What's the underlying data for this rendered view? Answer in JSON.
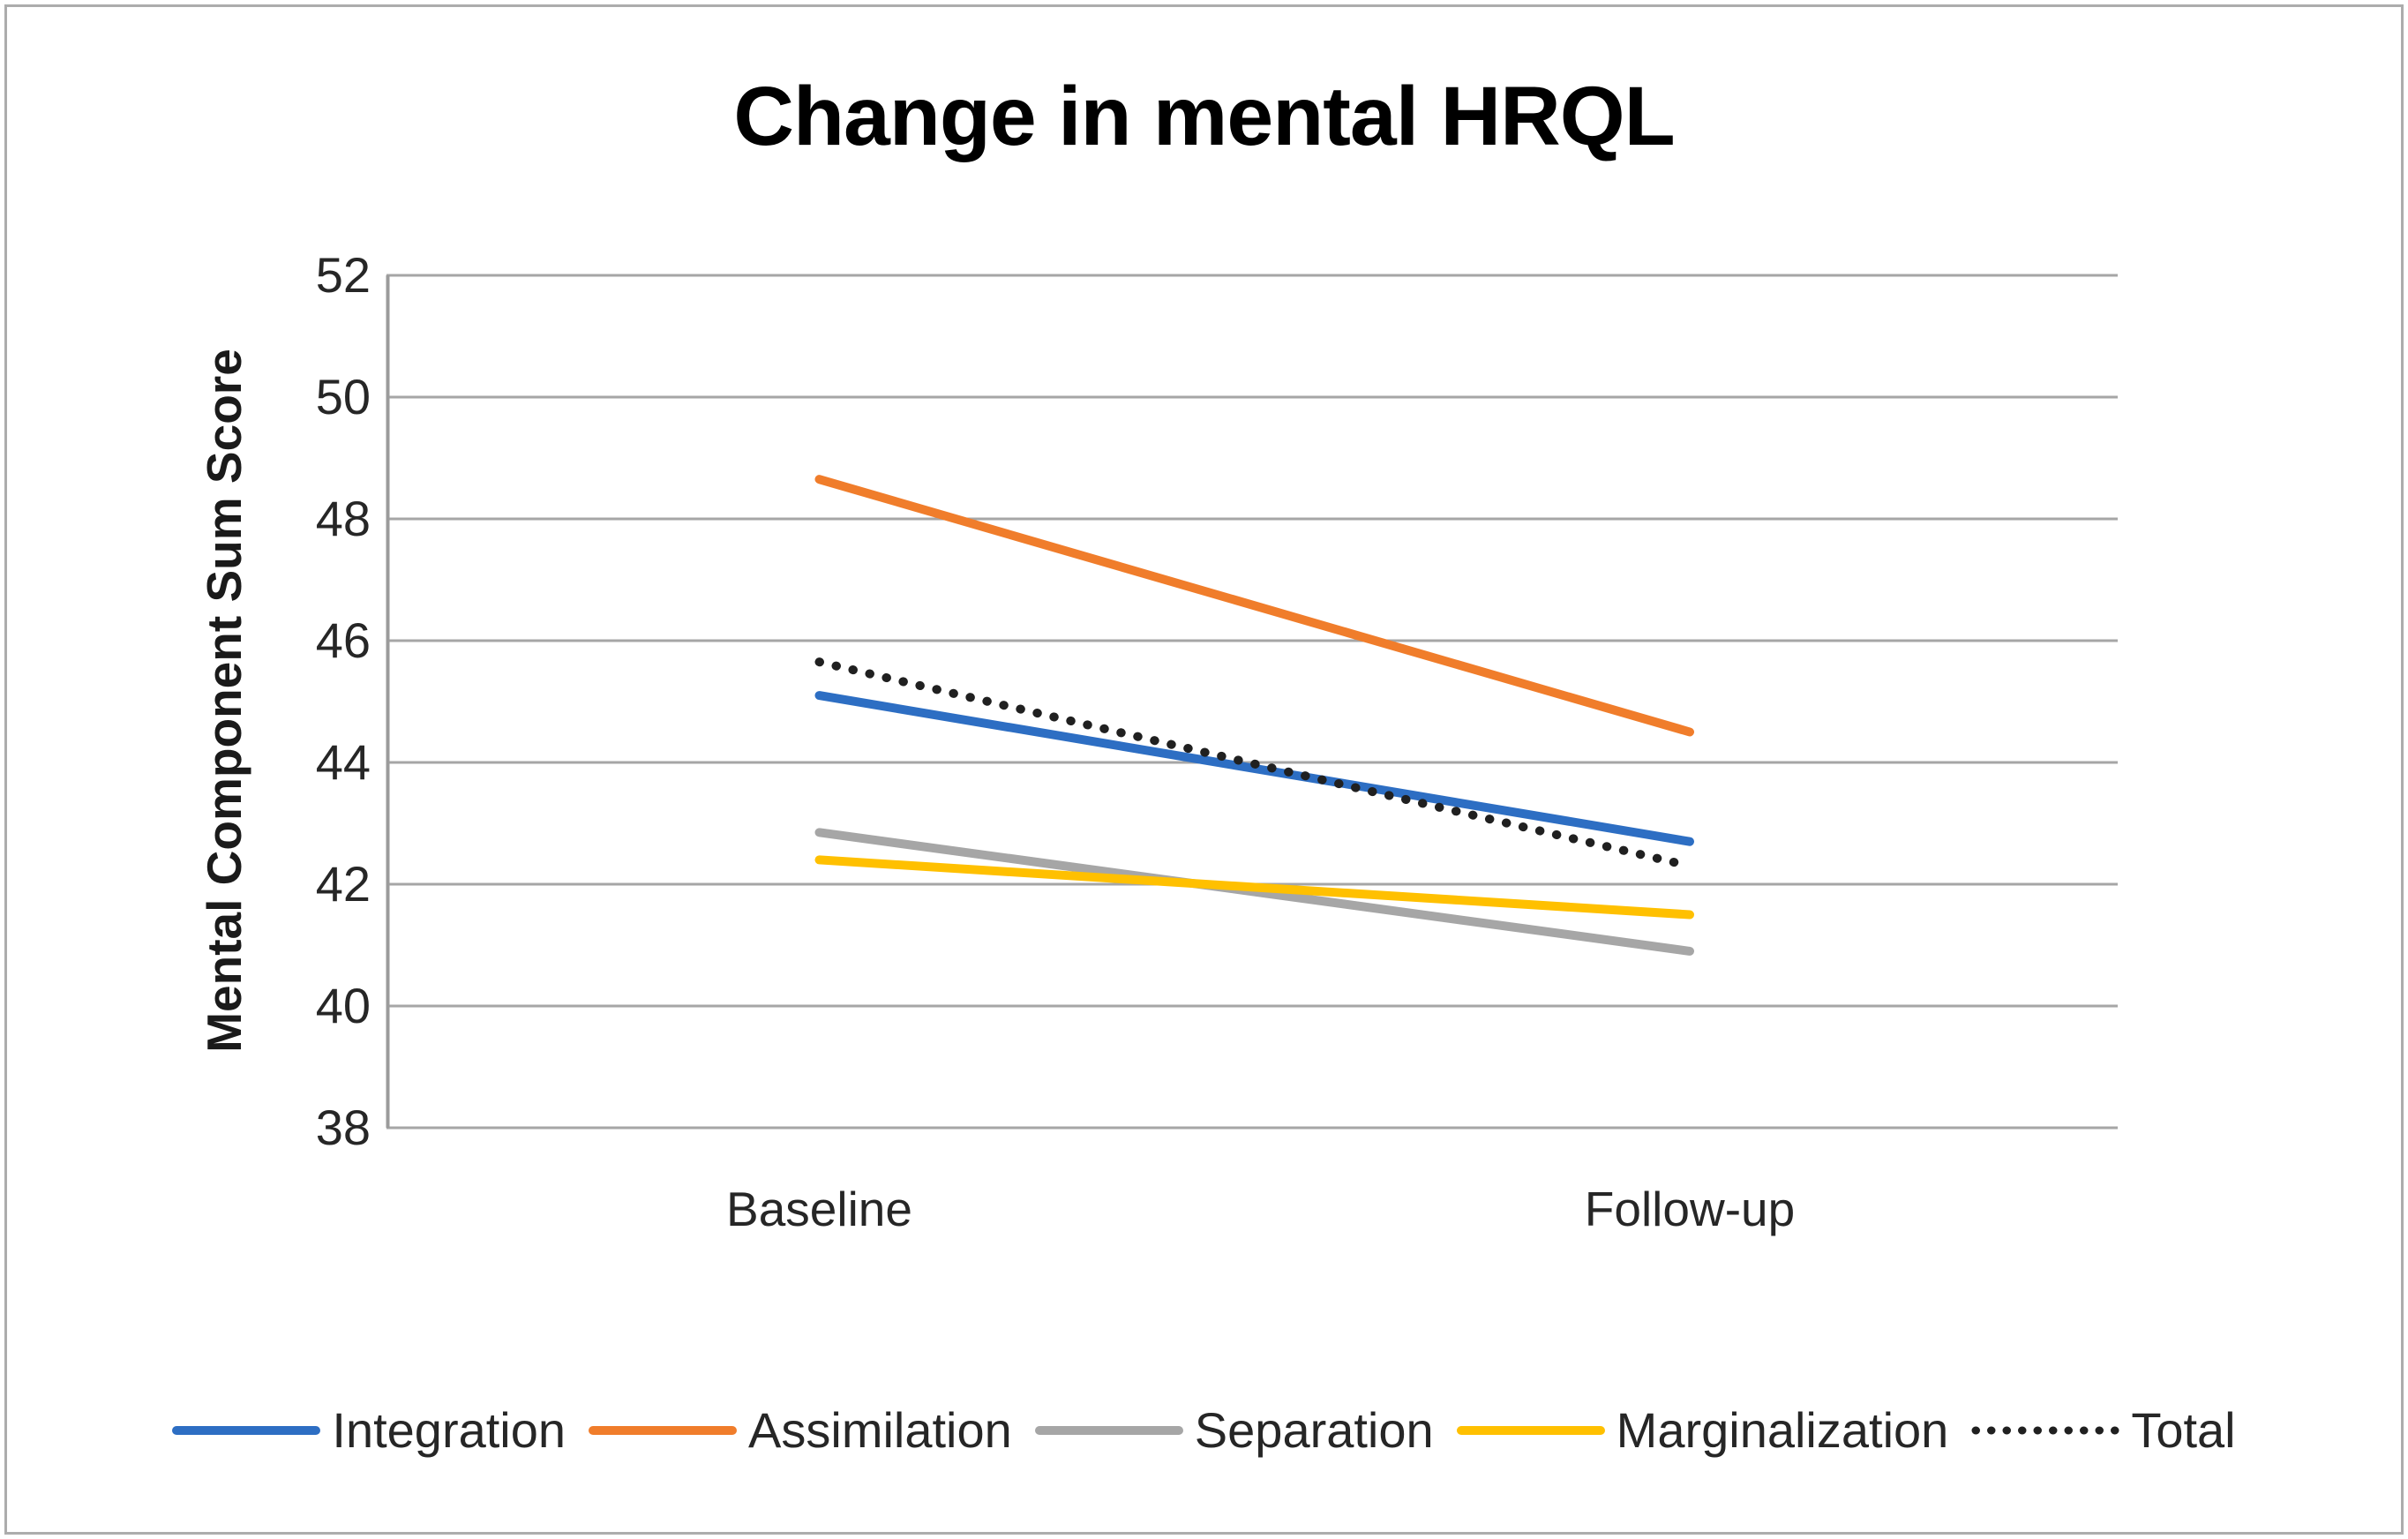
{
  "figure": {
    "title": "Change in mental HRQL",
    "border_color": "#ACACAC",
    "background": "#ffffff"
  },
  "chart_data": {
    "type": "line",
    "title": "Change in mental HRQL",
    "categories": [
      "Baseline",
      "Follow-up"
    ],
    "series": [
      {
        "name": "Integration",
        "values": [
          45.1,
          42.7
        ],
        "color": "#2D6EC3",
        "style": "solid"
      },
      {
        "name": "Assimilation",
        "values": [
          48.65,
          44.5
        ],
        "color": "#F07D2B",
        "style": "solid"
      },
      {
        "name": "Separation",
        "values": [
          42.85,
          40.9
        ],
        "color": "#A6A6A6",
        "style": "solid"
      },
      {
        "name": "Marginalization",
        "values": [
          42.4,
          41.5
        ],
        "color": "#FFC000",
        "style": "solid"
      },
      {
        "name": "Total",
        "values": [
          45.65,
          42.3
        ],
        "color": "#202020",
        "style": "dotted"
      }
    ],
    "xlabel": "",
    "ylabel": "Mental Component Sum Score",
    "ylim": [
      38,
      52
    ],
    "yticks": [
      52,
      50,
      48,
      46,
      44,
      42,
      40,
      38
    ],
    "grid": true,
    "gridline_color": "#A6A6A6",
    "axis_line_color": "#9B9B9B",
    "legend_position": "bottom"
  }
}
